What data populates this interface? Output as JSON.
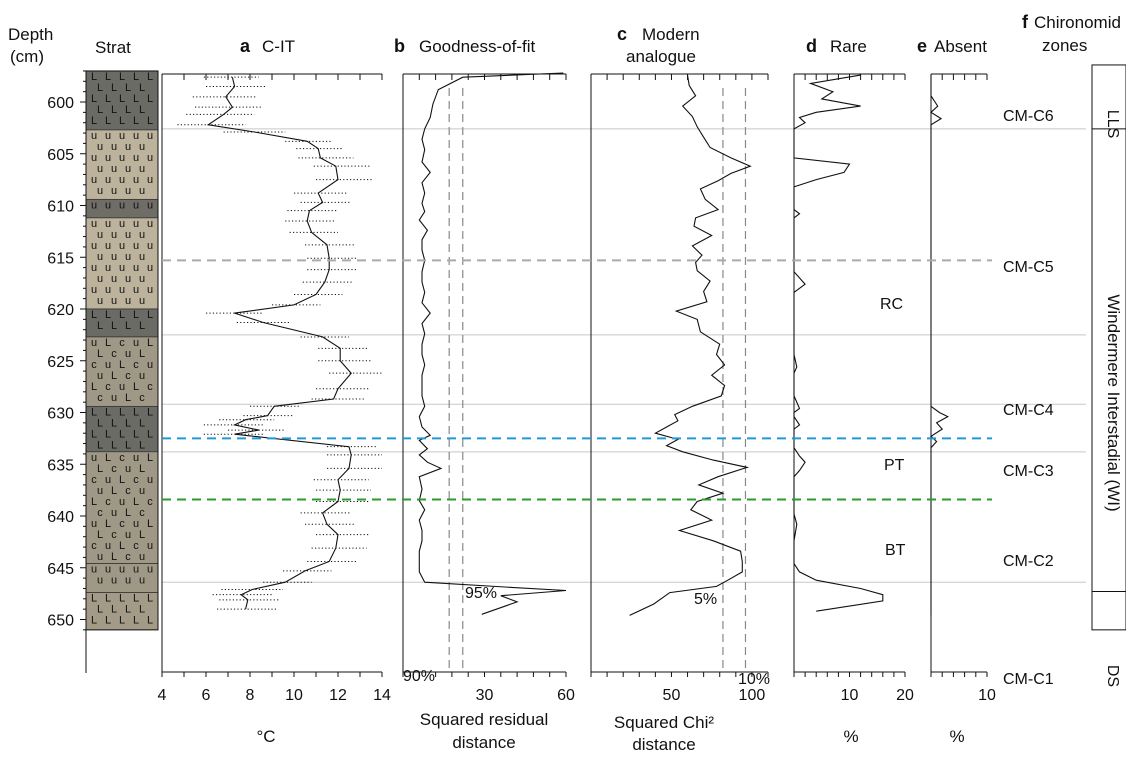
{
  "figure": {
    "depth_label_line1": "Depth",
    "depth_label_line2": "(cm)",
    "strat_label": "Strat"
  },
  "panels": [
    {
      "letter": "a",
      "title": "C-IT",
      "unit": "°C",
      "ticks": [
        "4",
        "6",
        "8",
        "10",
        "12",
        "14"
      ],
      "range": [
        4,
        14
      ]
    },
    {
      "letter": "b",
      "title": "Goodness-of-fit",
      "unit_line1": "Squared residual",
      "unit_line2": "distance",
      "ticks": [
        "30",
        "60"
      ],
      "range": [
        0,
        60
      ]
    },
    {
      "letter": "c",
      "title_line1": "Modern",
      "title_line2": "analogue",
      "unit_line1": "Squared Chi²",
      "unit_line2": "distance",
      "ticks": [
        "50",
        "100"
      ],
      "range": [
        0,
        110
      ]
    },
    {
      "letter": "d",
      "title": "Rare",
      "unit": "%",
      "ticks": [
        "10",
        "20"
      ],
      "range": [
        0,
        20
      ]
    },
    {
      "letter": "e",
      "title": "Absent",
      "unit": "%",
      "ticks": [
        "10"
      ],
      "range": [
        0,
        10
      ]
    },
    {
      "letter": "f",
      "title_line1": "Chironomid",
      "title_line2": "zones"
    }
  ],
  "thresholds": {
    "b": [
      {
        "label": "90%",
        "value": 17
      },
      {
        "label": "95%",
        "value": 22
      }
    ],
    "c": [
      {
        "label": "5%",
        "value": 82
      },
      {
        "label": "10%",
        "value": 96
      }
    ]
  },
  "events": [
    {
      "label": "RC",
      "depth": 615.3,
      "color": "#aaaaaa"
    },
    {
      "label": "PT",
      "depth": 632.5,
      "color": "#1f9ad6"
    },
    {
      "label": "BT",
      "depth": 638.4,
      "color": "#2e9a2e"
    }
  ],
  "zones": [
    {
      "label": "CM-C6",
      "label_depth": 599.6
    },
    {
      "label": "CM-C5",
      "label_depth": 614.8
    },
    {
      "label": "CM-C4",
      "label_depth": 627.5
    },
    {
      "label": "CM-C3",
      "label_depth": 631.8
    },
    {
      "label": "CM-C2",
      "label_depth": 641.6
    },
    {
      "label": "CM-C1",
      "label_depth": 648.7
    }
  ],
  "zone_boundaries": [
    602.6,
    622.5,
    629.2,
    633.8,
    646.4
  ],
  "strat_units": [
    {
      "label": "LLS",
      "from": 597,
      "to": 602.6
    },
    {
      "label": "Windermere Interstadial (WI)",
      "from": 602.6,
      "to": 647.3
    },
    {
      "label": "DS",
      "from": 647.3,
      "to": 651
    }
  ],
  "chart_data": {
    "type": "line",
    "orientation": "vertical-depth",
    "ylabel": "Depth (cm)",
    "ylim": [
      597,
      651
    ],
    "yticks": [
      600,
      605,
      610,
      615,
      620,
      625,
      630,
      635,
      640,
      645,
      650
    ],
    "series": [
      {
        "name": "C-IT",
        "xlim": [
          4,
          14
        ],
        "depth": [
          597.6,
          598.5,
          599.5,
          600.5,
          601.2,
          602.2,
          602.9,
          603.8,
          604.5,
          605.4,
          606.2,
          607.5,
          608.8,
          609.7,
          610.5,
          611.5,
          612.6,
          613.8,
          615.1,
          616.2,
          617.4,
          618.6,
          619.6,
          620.4,
          621.3,
          622.7,
          623.8,
          625.0,
          626.2,
          627.7,
          628.7,
          629.4,
          630.3,
          630.7,
          631.2,
          631.7,
          632.1,
          633.3,
          634.1,
          635.4,
          636.5,
          637.5,
          638.6,
          639.7,
          640.8,
          641.8,
          643.1,
          644.4,
          645.3,
          646.4,
          647.1,
          647.6,
          648.1,
          649.0
        ],
        "values": [
          7.2,
          7.3,
          6.9,
          7.2,
          6.8,
          6.1,
          8.2,
          10.6,
          11.1,
          11.2,
          11.9,
          12.0,
          11.1,
          11.3,
          10.7,
          10.6,
          10.8,
          11.5,
          11.6,
          11.6,
          11.4,
          11.0,
          10.0,
          7.3,
          8.6,
          11.3,
          12.1,
          12.1,
          12.6,
          12.0,
          11.8,
          9.1,
          8.8,
          7.8,
          7.3,
          8.4,
          7.3,
          12.5,
          12.6,
          12.5,
          12.0,
          12.1,
          12.0,
          11.3,
          11.5,
          12.0,
          11.9,
          11.6,
          10.5,
          9.6,
          8.1,
          7.6,
          7.9,
          7.8
        ],
        "error_min": [
          5.9,
          6.0,
          5.4,
          5.5,
          5.1,
          4.7,
          6.8,
          9.6,
          10.1,
          10.2,
          10.9,
          11.0,
          10.0,
          10.3,
          9.7,
          9.6,
          9.8,
          10.5,
          10.6,
          10.6,
          10.4,
          10.0,
          9.0,
          6.0,
          7.4,
          10.3,
          11.1,
          11.1,
          11.6,
          11.0,
          10.8,
          8.0,
          7.7,
          6.6,
          5.9,
          7.0,
          5.9,
          11.5,
          11.5,
          11.5,
          10.9,
          11.0,
          11.0,
          10.3,
          10.5,
          11.0,
          10.8,
          10.6,
          9.5,
          8.6,
          6.7,
          6.3,
          6.6,
          6.5
        ],
        "error_max": [
          8.4,
          8.7,
          8.3,
          8.5,
          8.2,
          7.8,
          9.6,
          11.7,
          12.2,
          12.7,
          13.5,
          13.6,
          12.4,
          12.6,
          12.0,
          11.9,
          12.0,
          12.8,
          12.9,
          12.9,
          12.7,
          12.2,
          11.2,
          8.6,
          9.8,
          12.5,
          13.4,
          13.5,
          14.0,
          13.4,
          13.2,
          10.3,
          10.0,
          9.1,
          8.6,
          9.6,
          8.6,
          13.8,
          14.0,
          14.0,
          13.4,
          13.5,
          13.4,
          12.6,
          12.8,
          13.4,
          13.3,
          12.9,
          11.7,
          10.8,
          9.5,
          9.0,
          9.3,
          9.2
        ]
      },
      {
        "name": "Goodness-of-fit",
        "xlim": [
          0,
          60
        ],
        "depth": [
          597.2,
          597.6,
          598.8,
          600.2,
          601.5,
          602.6,
          603.6,
          604.6,
          605.8,
          606.8,
          607.8,
          608.8,
          609.8,
          610.6,
          611.4,
          612.4,
          613.3,
          614.3,
          615.3,
          616.4,
          617.4,
          618.4,
          619.4,
          620.4,
          621.4,
          622.4,
          623.4,
          624.4,
          625.4,
          626.4,
          627.4,
          628.4,
          629.4,
          630.4,
          631.4,
          632.2,
          632.7,
          633.5,
          634.1,
          634.8,
          635.4,
          636.2,
          637.4,
          638.5,
          639.4,
          640.4,
          641.4,
          642.4,
          643.4,
          644.4,
          645.4,
          646.4,
          646.9,
          647.2,
          647.7,
          648.3,
          649.5
        ],
        "values": [
          59,
          22,
          13,
          11,
          10,
          8,
          7,
          8,
          7,
          10,
          7,
          8,
          7,
          8,
          6,
          9,
          7,
          7,
          8,
          7,
          7,
          8,
          7,
          10,
          7,
          8,
          7,
          7,
          8,
          7,
          7,
          7,
          8,
          6,
          7,
          10,
          6,
          9,
          6,
          9,
          14,
          6,
          7,
          6,
          8,
          6,
          7,
          7,
          6,
          6,
          6,
          8,
          40,
          60,
          36,
          42,
          29
        ]
      },
      {
        "name": "Modern analogue",
        "xlim": [
          0,
          110
        ],
        "depth": [
          597.4,
          598.4,
          599.4,
          600.4,
          601.4,
          602.4,
          603.4,
          604.4,
          605.4,
          606.2,
          606.9,
          607.6,
          608.4,
          609.4,
          610.4,
          611.2,
          612.0,
          612.9,
          613.9,
          614.8,
          615.5,
          616.3,
          617.3,
          618.3,
          619.3,
          620.2,
          621.0,
          622.2,
          623.4,
          624.4,
          625.4,
          626.4,
          627.4,
          628.4,
          629.4,
          630.2,
          630.8,
          631.4,
          632.0,
          632.6,
          633.2,
          633.8,
          634.6,
          635.3,
          636.2,
          637.0,
          637.8,
          638.6,
          639.4,
          640.4,
          641.4,
          642.4,
          643.4,
          644.4,
          645.4,
          646.2,
          646.8,
          647.4,
          648.5,
          649.6
        ],
        "values": [
          60,
          61,
          65,
          57,
          63,
          66,
          70,
          74,
          87,
          99,
          87,
          79,
          68,
          71,
          79,
          65,
          64,
          75,
          63,
          69,
          65,
          66,
          74,
          70,
          72,
          53,
          66,
          68,
          80,
          78,
          83,
          75,
          83,
          81,
          63,
          52,
          54,
          47,
          40,
          54,
          47,
          57,
          76,
          97,
          79,
          67,
          82,
          66,
          62,
          75,
          55,
          76,
          93,
          94,
          94,
          85,
          78,
          49,
          39,
          24
        ]
      },
      {
        "name": "Rare",
        "xlim": [
          0,
          20
        ],
        "depth": [
          597.4,
          598.2,
          599.0,
          599.7,
          600.4,
          601.0,
          601.5,
          602.0,
          602.6,
          603.4,
          604.6,
          605.4,
          606.0,
          606.8,
          607.5,
          608.2,
          609.4,
          610.4,
          610.8,
          611.2,
          612.4,
          614.4,
          616.4,
          617.6,
          618.4,
          619.2,
          620.4,
          622.4,
          624.4,
          625.6,
          626.2,
          627.4,
          628.4,
          629.6,
          630.0,
          630.4,
          631.2,
          631.6,
          632.2,
          633.4,
          634.2,
          634.8,
          635.6,
          636.2,
          637.4,
          638.4,
          639.8,
          640.8,
          642.4,
          643.4,
          644.6,
          645.4,
          646.2,
          647.0,
          647.6,
          648.2,
          649.2
        ],
        "values": [
          12,
          3,
          7,
          5,
          12,
          4,
          1,
          2,
          0,
          0,
          0,
          0,
          10,
          9,
          4,
          0,
          0,
          0,
          1,
          0,
          0,
          0,
          0,
          2,
          0,
          0,
          0,
          0,
          0,
          0.5,
          0,
          0,
          0,
          1,
          0,
          0,
          1,
          0,
          0,
          0,
          1,
          2,
          1,
          0,
          0,
          0,
          0,
          0.5,
          0,
          0,
          0,
          1,
          4,
          12,
          16,
          16,
          4
        ]
      },
      {
        "name": "Absent",
        "xlim": [
          0,
          10
        ],
        "depth": [
          597.4,
          599.4,
          600.4,
          601.0,
          601.6,
          602.2,
          602.6,
          603.4,
          620.4,
          629.4,
          630.0,
          630.4,
          631.0,
          631.6,
          632.3,
          632.8,
          633.4,
          640.4,
          649.6
        ],
        "values": [
          0,
          0,
          1.2,
          0,
          1.8,
          0,
          0,
          0,
          0,
          0,
          1.5,
          3,
          1,
          2,
          0,
          1,
          0,
          0,
          0
        ]
      }
    ]
  }
}
